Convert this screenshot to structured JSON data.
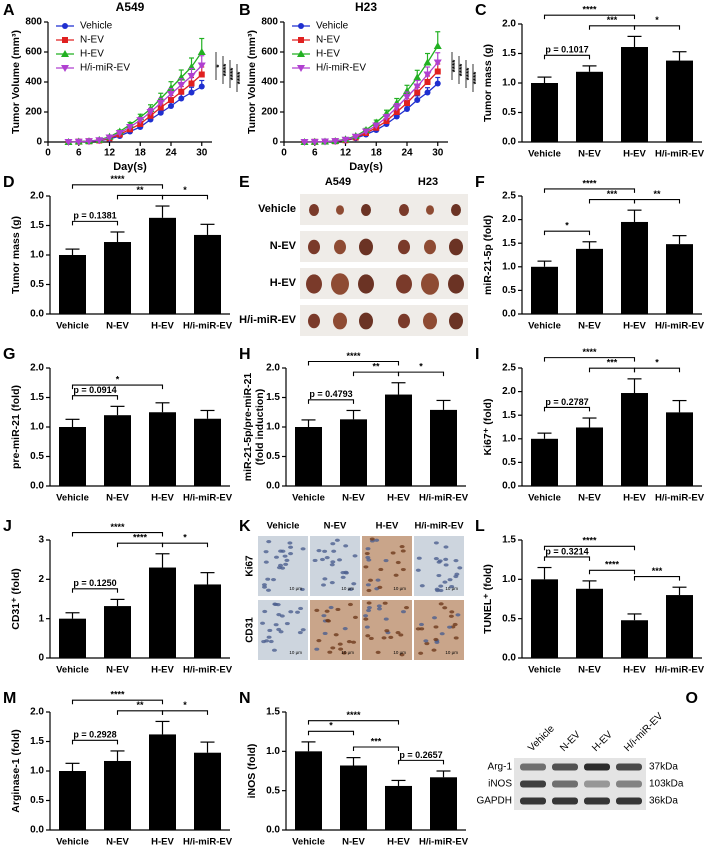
{
  "chart_data": [
    {
      "type": "line",
      "panel": "A",
      "title": "A549",
      "xlabel": "Day(s)",
      "ylabel": "Tumor Volume (mm³)",
      "x": [
        4,
        6,
        8,
        10,
        12,
        14,
        16,
        18,
        20,
        22,
        24,
        26,
        28,
        30
      ],
      "xlim": [
        0,
        32
      ],
      "xticks": [
        0,
        6,
        12,
        18,
        24,
        30
      ],
      "ylim": [
        0,
        800
      ],
      "yticks": [
        0,
        200,
        400,
        600,
        800
      ],
      "legend": "upper left",
      "series": [
        {
          "name": "Vehicle",
          "color": "#1f2fd0",
          "marker": "circle",
          "values": [
            0,
            2,
            4,
            8,
            20,
            40,
            70,
            100,
            150,
            195,
            240,
            290,
            330,
            370
          ],
          "errors": [
            0,
            1,
            1,
            2,
            4,
            6,
            10,
            12,
            18,
            22,
            26,
            30,
            35,
            40
          ]
        },
        {
          "name": "N-EV",
          "color": "#e02020",
          "marker": "square",
          "values": [
            0,
            2,
            5,
            10,
            25,
            50,
            85,
            120,
            175,
            230,
            280,
            335,
            390,
            450
          ],
          "errors": [
            0,
            1,
            1,
            2,
            5,
            8,
            12,
            15,
            20,
            25,
            30,
            35,
            40,
            50
          ]
        },
        {
          "name": "H-EV",
          "color": "#22b022",
          "marker": "triangle",
          "values": [
            0,
            3,
            6,
            14,
            35,
            70,
            115,
            165,
            220,
            290,
            360,
            430,
            500,
            600
          ],
          "errors": [
            0,
            1,
            2,
            3,
            6,
            10,
            15,
            20,
            28,
            35,
            42,
            50,
            60,
            90
          ]
        },
        {
          "name": "H/i-miR-EV",
          "color": "#b040d0",
          "marker": "down-triangle",
          "values": [
            0,
            2,
            5,
            12,
            30,
            60,
            100,
            145,
            200,
            260,
            320,
            380,
            440,
            510
          ],
          "errors": [
            0,
            1,
            1,
            3,
            5,
            9,
            13,
            18,
            24,
            30,
            36,
            42,
            50,
            65
          ]
        }
      ],
      "annotations": [
        "*",
        "****",
        "****",
        "****"
      ]
    },
    {
      "type": "line",
      "panel": "B",
      "title": "H23",
      "xlabel": "Day(s)",
      "ylabel": "Tumor Volume (mm³)",
      "x": [
        4,
        6,
        8,
        10,
        12,
        14,
        16,
        18,
        20,
        22,
        24,
        26,
        28,
        30
      ],
      "xlim": [
        0,
        32
      ],
      "xticks": [
        0,
        6,
        12,
        18,
        24,
        30
      ],
      "ylim": [
        0,
        800
      ],
      "yticks": [
        0,
        200,
        400,
        600,
        800
      ],
      "legend": "upper left",
      "series": [
        {
          "name": "Vehicle",
          "color": "#1f2fd0",
          "marker": "circle",
          "values": [
            0,
            1,
            2,
            4,
            10,
            25,
            50,
            80,
            120,
            170,
            220,
            280,
            330,
            390
          ],
          "errors": [
            0,
            1,
            1,
            1,
            2,
            4,
            7,
            10,
            14,
            18,
            22,
            28,
            32,
            40
          ]
        },
        {
          "name": "N-EV",
          "color": "#e02020",
          "marker": "square",
          "values": [
            0,
            1,
            3,
            5,
            12,
            30,
            60,
            95,
            140,
            200,
            260,
            330,
            400,
            470
          ],
          "errors": [
            0,
            1,
            1,
            1,
            3,
            5,
            8,
            12,
            16,
            22,
            28,
            34,
            40,
            50
          ]
        },
        {
          "name": "H-EV",
          "color": "#22b022",
          "marker": "triangle",
          "values": [
            0,
            2,
            3,
            7,
            18,
            40,
            80,
            130,
            190,
            260,
            340,
            430,
            530,
            640
          ],
          "errors": [
            0,
            1,
            1,
            2,
            4,
            7,
            11,
            16,
            22,
            30,
            38,
            48,
            60,
            95
          ]
        },
        {
          "name": "H/i-miR-EV",
          "color": "#b040d0",
          "marker": "down-triangle",
          "values": [
            0,
            1,
            3,
            6,
            15,
            35,
            70,
            110,
            165,
            230,
            300,
            370,
            450,
            530
          ],
          "errors": [
            0,
            1,
            1,
            1,
            3,
            6,
            9,
            14,
            19,
            26,
            33,
            40,
            50,
            65
          ]
        }
      ],
      "annotations": [
        "****",
        "****",
        "****",
        "****"
      ]
    },
    {
      "type": "bar",
      "panel": "C",
      "ylabel": "Tumor mass (g)",
      "categories": [
        "Vehicle",
        "N-EV",
        "H-EV",
        "H/i-miR-EV"
      ],
      "values": [
        1.0,
        1.19,
        1.61,
        1.38
      ],
      "errors": [
        0.1,
        0.1,
        0.18,
        0.15
      ],
      "color": "#000000",
      "ylim": [
        0,
        2
      ],
      "yticks": [
        {
          "value": 0,
          "label": "0.0"
        },
        0.5,
        {
          "value": 1,
          "label": "1.0"
        },
        1.5,
        {
          "value": 2,
          "label": "2.0"
        }
      ],
      "annotations": [
        {
          "text": "p = 0.1017",
          "between": [
            "Vehicle",
            "N-EV"
          ]
        },
        {
          "text": "*",
          "between": [
            "H-EV",
            "H/i-miR-EV"
          ]
        },
        {
          "text": "***",
          "between": [
            "N-EV",
            "H-EV"
          ]
        },
        {
          "text": "****",
          "between": [
            "Vehicle",
            "H-EV"
          ]
        }
      ]
    },
    {
      "type": "bar",
      "panel": "D",
      "ylabel": "Tumor mass (g)",
      "categories": [
        "Vehicle",
        "N-EV",
        "H-EV",
        "H/i-miR-EV"
      ],
      "values": [
        1.0,
        1.22,
        1.63,
        1.34
      ],
      "errors": [
        0.1,
        0.17,
        0.2,
        0.18
      ],
      "color": "#000000",
      "ylim": [
        0,
        2
      ],
      "yticks": [
        {
          "value": 0,
          "label": "0.0"
        },
        0.5,
        {
          "value": 1,
          "label": "1.0"
        },
        1.5,
        {
          "value": 2,
          "label": "2.0"
        }
      ],
      "annotations": [
        {
          "text": "p = 0.1381",
          "between": [
            "Vehicle",
            "N-EV"
          ]
        },
        {
          "text": "*",
          "between": [
            "H-EV",
            "H/i-miR-EV"
          ]
        },
        {
          "text": "**",
          "between": [
            "N-EV",
            "H-EV"
          ]
        },
        {
          "text": "****",
          "between": [
            "Vehicle",
            "H-EV"
          ]
        }
      ]
    },
    {
      "type": "bar",
      "panel": "F",
      "ylabel": "miR-21-5p (fold)",
      "categories": [
        "Vehicle",
        "N-EV",
        "H-EV",
        "H/i-miR-EV"
      ],
      "values": [
        1.0,
        1.38,
        1.95,
        1.48
      ],
      "errors": [
        0.12,
        0.15,
        0.25,
        0.18
      ],
      "color": "#000000",
      "ylim": [
        0,
        2.5
      ],
      "yticks": [
        {
          "value": 0,
          "label": "0.0"
        },
        0.5,
        {
          "value": 1,
          "label": "1.0"
        },
        1.5,
        {
          "value": 2,
          "label": "2.0"
        },
        2.5
      ],
      "annotations": [
        {
          "text": "*",
          "between": [
            "Vehicle",
            "N-EV"
          ]
        },
        {
          "text": "**",
          "between": [
            "H-EV",
            "H/i-miR-EV"
          ]
        },
        {
          "text": "***",
          "between": [
            "N-EV",
            "H-EV"
          ]
        },
        {
          "text": "****",
          "between": [
            "Vehicle",
            "H-EV"
          ]
        }
      ]
    },
    {
      "type": "bar",
      "panel": "G",
      "ylabel": "pre-miR-21 (fold)",
      "categories": [
        "Vehicle",
        "N-EV",
        "H-EV",
        "H/i-miR-EV"
      ],
      "values": [
        1.0,
        1.2,
        1.25,
        1.14
      ],
      "errors": [
        0.13,
        0.15,
        0.16,
        0.14
      ],
      "color": "#000000",
      "ylim": [
        0,
        2
      ],
      "yticks": [
        {
          "value": 0,
          "label": "0.0"
        },
        0.5,
        {
          "value": 1,
          "label": "1.0"
        },
        1.5,
        {
          "value": 2,
          "label": "2.0"
        }
      ],
      "annotations": [
        {
          "text": "p = 0.0914",
          "between": [
            "Vehicle",
            "N-EV"
          ]
        },
        {
          "text": "*",
          "between": [
            "Vehicle",
            "H-EV"
          ]
        }
      ]
    },
    {
      "type": "bar",
      "panel": "H",
      "ylabel": [
        "miR-21-5p/pre-miR-21",
        "(fold induction)"
      ],
      "categories": [
        "Vehicle",
        "N-EV",
        "H-EV",
        "H/i-miR-EV"
      ],
      "values": [
        1.0,
        1.13,
        1.55,
        1.29
      ],
      "errors": [
        0.12,
        0.15,
        0.2,
        0.16
      ],
      "color": "#000000",
      "ylim": [
        0,
        2
      ],
      "yticks": [
        {
          "value": 0,
          "label": "0.0"
        },
        0.5,
        {
          "value": 1,
          "label": "1.0"
        },
        1.5,
        {
          "value": 2,
          "label": "2.0"
        }
      ],
      "annotations": [
        {
          "text": "p = 0.4793",
          "between": [
            "Vehicle",
            "N-EV"
          ]
        },
        {
          "text": "*",
          "between": [
            "H-EV",
            "H/i-miR-EV"
          ]
        },
        {
          "text": "**",
          "between": [
            "N-EV",
            "H-EV"
          ]
        },
        {
          "text": "****",
          "between": [
            "Vehicle",
            "H-EV"
          ]
        }
      ]
    },
    {
      "type": "bar",
      "panel": "I",
      "ylabel": "Ki67⁺ (fold)",
      "categories": [
        "Vehicle",
        "N-EV",
        "H-EV",
        "H/i-miR-EV"
      ],
      "values": [
        1.0,
        1.24,
        1.97,
        1.56
      ],
      "errors": [
        0.12,
        0.2,
        0.3,
        0.25
      ],
      "color": "#000000",
      "ylim": [
        0,
        2.5
      ],
      "yticks": [
        {
          "value": 0,
          "label": "0.0"
        },
        0.5,
        {
          "value": 1,
          "label": "1.0"
        },
        1.5,
        {
          "value": 2,
          "label": "2.0"
        },
        2.5
      ],
      "annotations": [
        {
          "text": "p = 0.2787",
          "between": [
            "Vehicle",
            "N-EV"
          ]
        },
        {
          "text": "*",
          "between": [
            "H-EV",
            "H/i-miR-EV"
          ]
        },
        {
          "text": "***",
          "between": [
            "N-EV",
            "H-EV"
          ]
        },
        {
          "text": "****",
          "between": [
            "Vehicle",
            "H-EV"
          ]
        }
      ]
    },
    {
      "type": "bar",
      "panel": "J",
      "ylabel": "CD31⁺ (fold)",
      "categories": [
        "Vehicle",
        "N-EV",
        "H-EV",
        "H/i-miR-EV"
      ],
      "values": [
        1.0,
        1.32,
        2.3,
        1.87
      ],
      "errors": [
        0.15,
        0.17,
        0.35,
        0.3
      ],
      "color": "#000000",
      "ylim": [
        0,
        3
      ],
      "yticks": [
        0,
        1,
        2,
        3
      ],
      "annotations": [
        {
          "text": "p = 0.1250",
          "between": [
            "Vehicle",
            "N-EV"
          ]
        },
        {
          "text": "*",
          "between": [
            "H-EV",
            "H/i-miR-EV"
          ]
        },
        {
          "text": "****",
          "between": [
            "N-EV",
            "H-EV"
          ]
        },
        {
          "text": "****",
          "between": [
            "Vehicle",
            "H-EV"
          ]
        }
      ]
    },
    {
      "type": "bar",
      "panel": "L",
      "ylabel": "TUNEL⁺ (fold)",
      "categories": [
        "Vehicle",
        "N-EV",
        "H-EV",
        "H/i-miR-EV"
      ],
      "values": [
        1.0,
        0.88,
        0.48,
        0.8
      ],
      "errors": [
        0.15,
        0.1,
        0.08,
        0.1
      ],
      "color": "#000000",
      "ylim": [
        0,
        1.5
      ],
      "yticks": [
        {
          "value": 0,
          "label": "0.0"
        },
        0.5,
        {
          "value": 1,
          "label": "1.0"
        },
        1.5
      ],
      "annotations": [
        {
          "text": "p = 0.3214",
          "between": [
            "Vehicle",
            "N-EV"
          ]
        },
        {
          "text": "***",
          "between": [
            "H-EV",
            "H/i-miR-EV"
          ]
        },
        {
          "text": "****",
          "between": [
            "N-EV",
            "H-EV"
          ]
        },
        {
          "text": "****",
          "between": [
            "Vehicle",
            "H-EV"
          ]
        }
      ]
    },
    {
      "type": "bar",
      "panel": "M",
      "ylabel": "Arginase-1 (fold)",
      "categories": [
        "Vehicle",
        "N-EV",
        "H-EV",
        "H/i-miR-EV"
      ],
      "values": [
        1.0,
        1.17,
        1.62,
        1.31
      ],
      "errors": [
        0.13,
        0.17,
        0.22,
        0.18
      ],
      "color": "#000000",
      "ylim": [
        0,
        2
      ],
      "yticks": [
        {
          "value": 0,
          "label": "0.0"
        },
        0.5,
        {
          "value": 1,
          "label": "1.0"
        },
        1.5,
        {
          "value": 2,
          "label": "2.0"
        }
      ],
      "annotations": [
        {
          "text": "p = 0.2928",
          "between": [
            "Vehicle",
            "N-EV"
          ]
        },
        {
          "text": "*",
          "between": [
            "H-EV",
            "H/i-miR-EV"
          ]
        },
        {
          "text": "**",
          "between": [
            "N-EV",
            "H-EV"
          ]
        },
        {
          "text": "****",
          "between": [
            "Vehicle",
            "H-EV"
          ]
        }
      ]
    },
    {
      "type": "bar",
      "panel": "N",
      "ylabel": "iNOS (fold)",
      "categories": [
        "Vehicle",
        "N-EV",
        "H-EV",
        "H/i-miR-EV"
      ],
      "values": [
        1.0,
        0.82,
        0.56,
        0.67
      ],
      "errors": [
        0.12,
        0.1,
        0.07,
        0.08
      ],
      "color": "#000000",
      "ylim": [
        0,
        1.5
      ],
      "yticks": [
        {
          "value": 0,
          "label": "0.0"
        },
        0.5,
        {
          "value": 1,
          "label": "1.0"
        },
        1.5
      ],
      "annotations": [
        {
          "text": "*",
          "between": [
            "Vehicle",
            "N-EV"
          ]
        },
        {
          "text": "p = 0.2657",
          "between": [
            "H-EV",
            "H/i-miR-EV"
          ]
        },
        {
          "text": "***",
          "between": [
            "N-EV",
            "H-EV"
          ]
        },
        {
          "text": "****",
          "between": [
            "Vehicle",
            "H-EV"
          ]
        }
      ]
    }
  ],
  "images": [
    {
      "panel": "E",
      "columns": [
        "A549",
        "H23"
      ],
      "rows": [
        "Vehicle",
        "N-EV",
        "H-EV",
        "H/i-miR-EV"
      ]
    },
    {
      "panel": "K",
      "columns": [
        "Vehicle",
        "N-EV",
        "H-EV",
        "H/i-miR-EV"
      ],
      "rows": [
        "Ki67",
        "CD31"
      ],
      "scale_bar": "10 μm"
    },
    {
      "panel": "O",
      "columns": [
        "Vehicle",
        "N-EV",
        "H-EV",
        "H/i-miR-EV"
      ],
      "rows": [
        "Arg-1",
        "iNOS",
        "GAPDH"
      ],
      "sizes": [
        "37kDa",
        "103kDa",
        "36kDa"
      ]
    }
  ]
}
